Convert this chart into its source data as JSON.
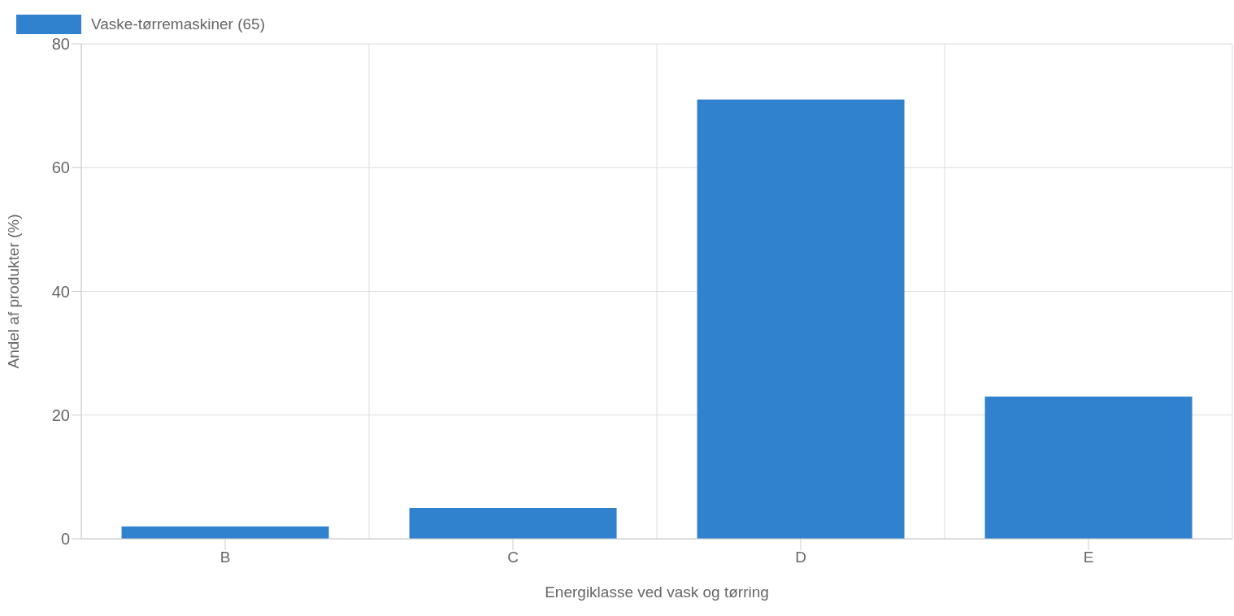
{
  "chart_data": {
    "type": "bar",
    "xlabel": "Energiklasse ved vask og tørring",
    "ylabel": "Andel af produkter (%)",
    "categories": [
      "B",
      "C",
      "D",
      "E"
    ],
    "series": [
      {
        "name": "Vaske-tørremaskiner (65)",
        "color": "#3182ce",
        "values": [
          2,
          5,
          71,
          23
        ]
      }
    ],
    "ylim": [
      0,
      80
    ],
    "yticks": [
      0,
      20,
      40,
      60,
      80
    ],
    "grid": true,
    "legend": "top left"
  }
}
